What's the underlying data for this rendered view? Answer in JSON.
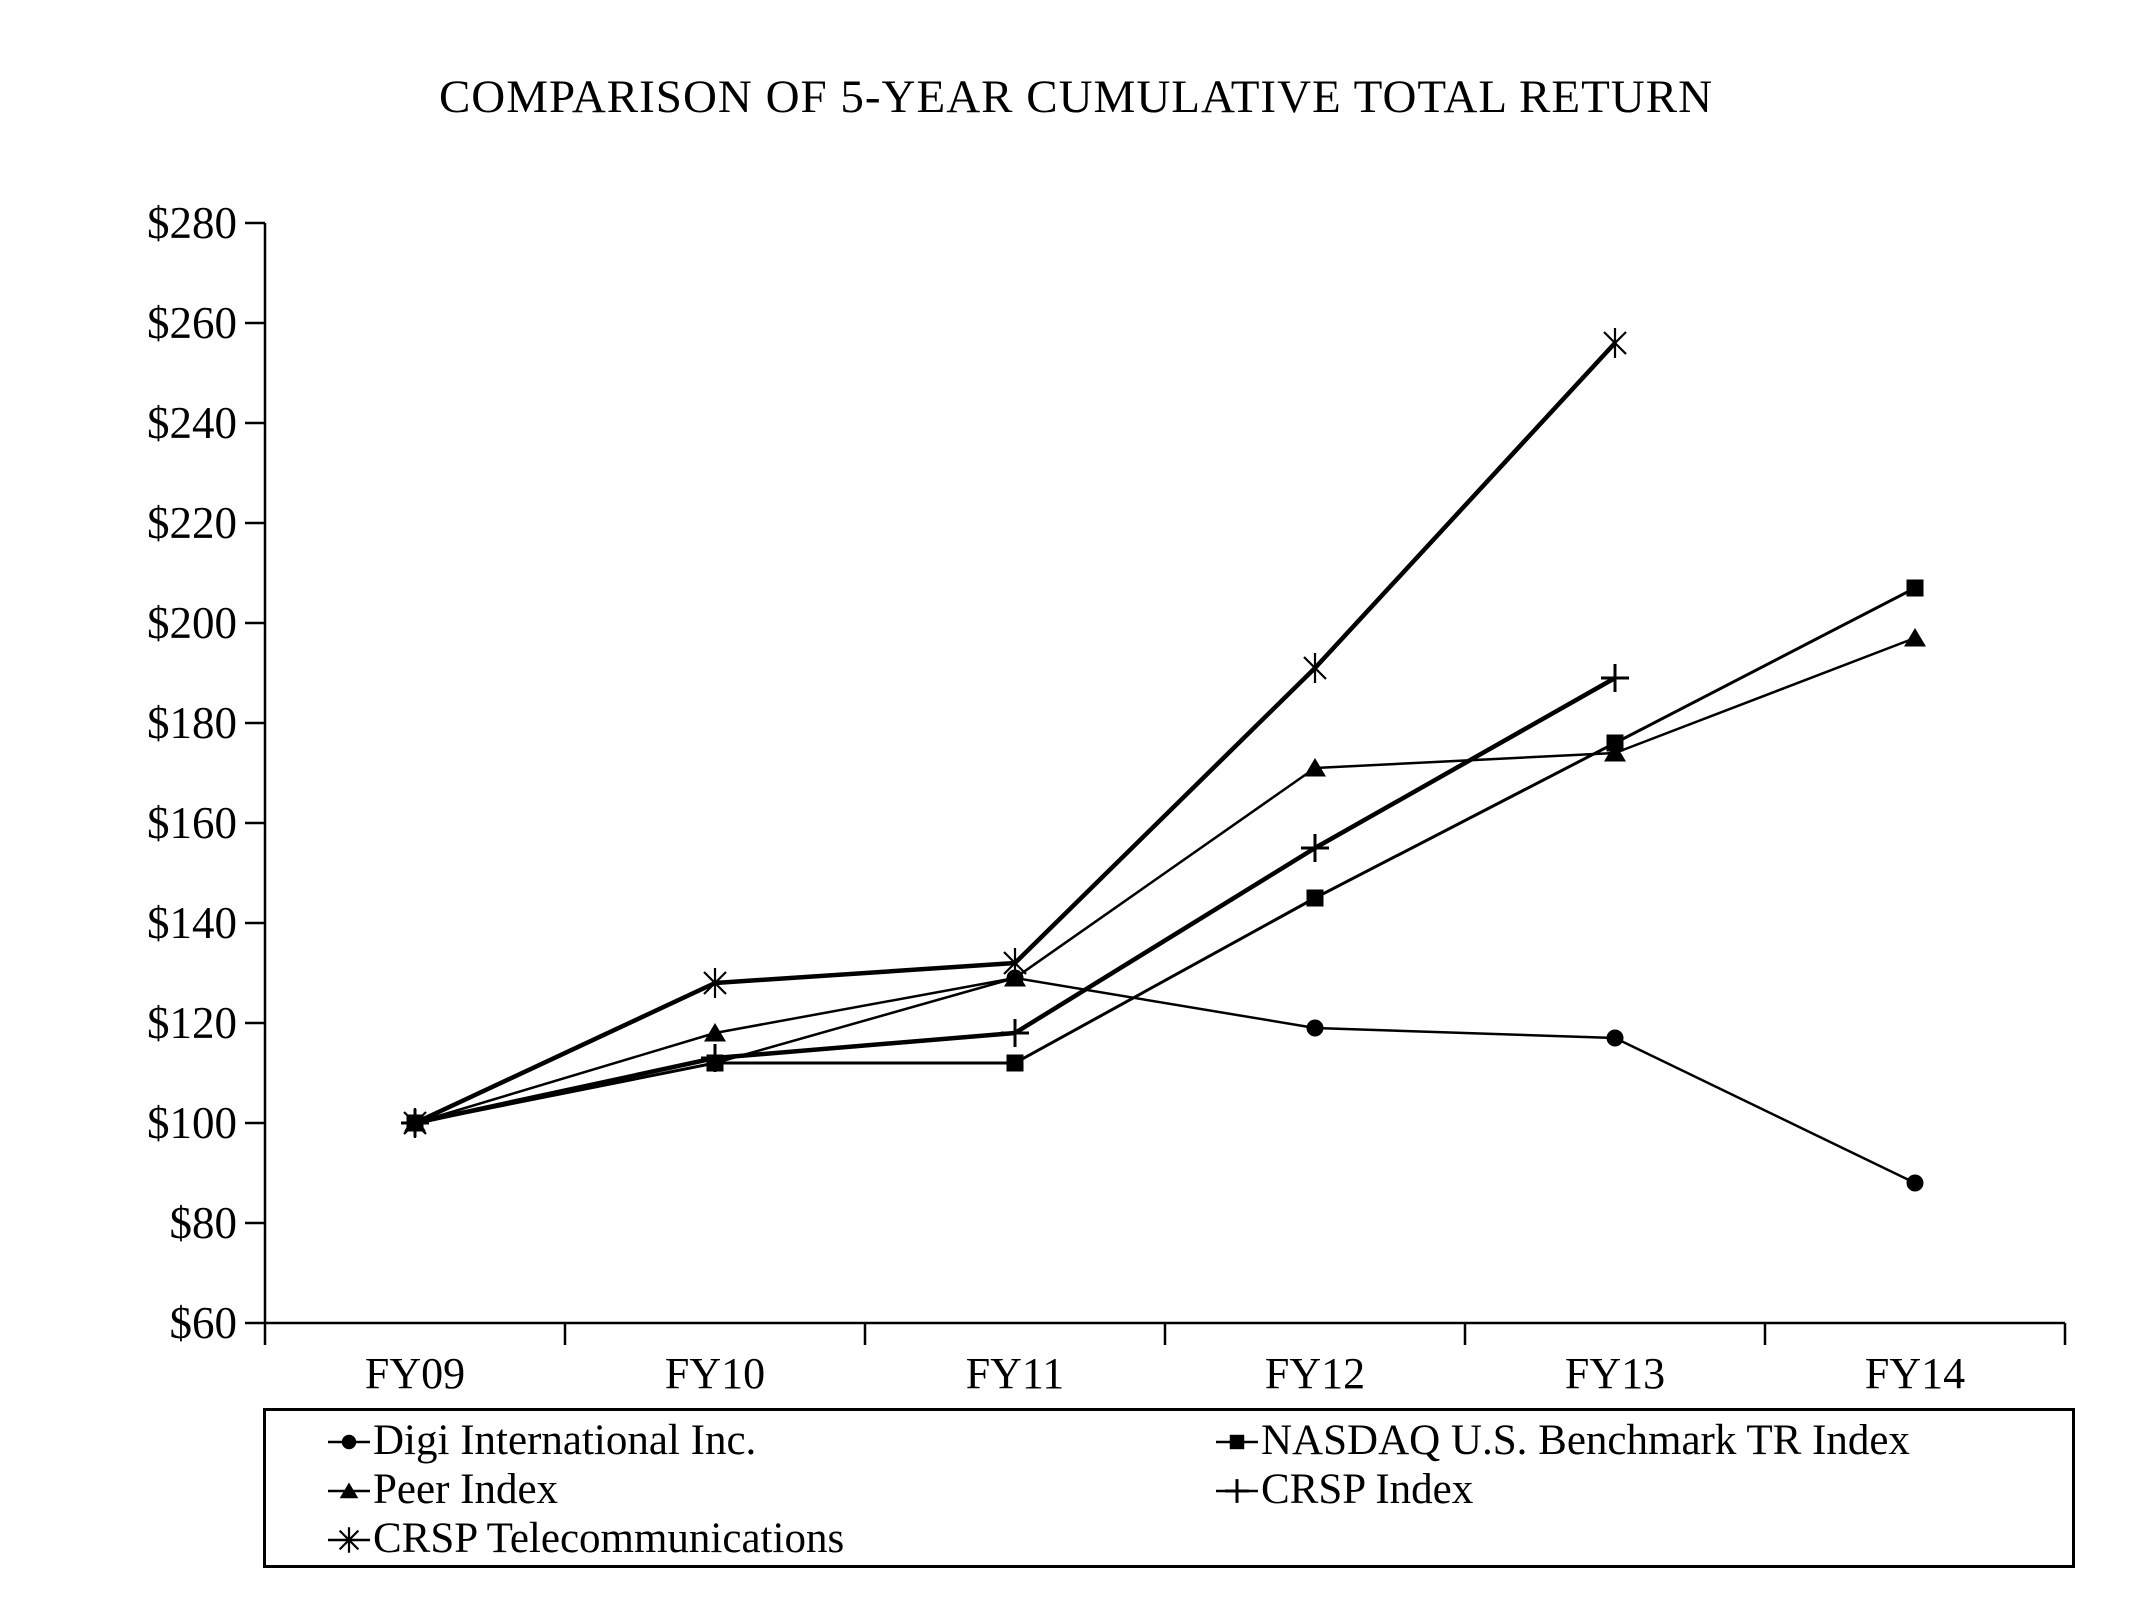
{
  "page": {
    "background": "#ffffff",
    "text_color": "#000000"
  },
  "chart_data": {
    "type": "line",
    "title": "COMPARISON OF 5-YEAR CUMULATIVE TOTAL RETURN",
    "categories": [
      "FY09",
      "FY10",
      "FY11",
      "FY12",
      "FY13",
      "FY14"
    ],
    "xlabel": "",
    "ylabel": "",
    "ylim": [
      60,
      280
    ],
    "y_tick_step": 20,
    "y_tick_prefix": "$",
    "y_tick_labels": [
      "$60",
      "$80",
      "$100",
      "$120",
      "$140",
      "$160",
      "$180",
      "$200",
      "$220",
      "$240",
      "$260",
      "$280"
    ],
    "grid": false,
    "line_color": "#000000",
    "legend_position": "bottom-box",
    "series": [
      {
        "name": "Digi International Inc.",
        "marker": "circle",
        "line_width": 2.5,
        "values": [
          100,
          112,
          129,
          119,
          117,
          88
        ]
      },
      {
        "name": "NASDAQ U.S. Benchmark TR Index",
        "marker": "square",
        "line_width": 3,
        "values": [
          100,
          112,
          112,
          145,
          176,
          207
        ]
      },
      {
        "name": "Peer Index",
        "marker": "triangle",
        "line_width": 2.5,
        "values": [
          100,
          118,
          129,
          171,
          174,
          197
        ]
      },
      {
        "name": "CRSP Index",
        "marker": "plus",
        "line_width": 4.5,
        "values": [
          100,
          113,
          118,
          155,
          189,
          null
        ]
      },
      {
        "name": "CRSP Telecommunications",
        "marker": "asterisk",
        "line_width": 4.5,
        "values": [
          100,
          128,
          132,
          191,
          256,
          null
        ]
      }
    ],
    "legend_columns": [
      [
        0,
        2,
        4
      ],
      [
        1,
        3
      ]
    ],
    "draw_order": [
      4,
      3,
      1,
      2,
      0
    ]
  }
}
